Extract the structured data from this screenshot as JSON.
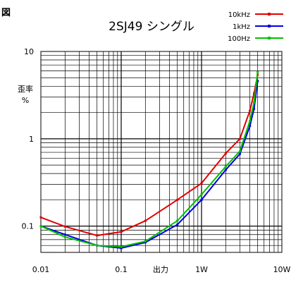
{
  "figure_label": "図",
  "chart_data": {
    "type": "line",
    "title": "2SJ49 シングル",
    "xlabel": "出力",
    "ylabel": "歪率\n%",
    "x_scale": "log",
    "y_scale": "log",
    "xlim": [
      0.01,
      10
    ],
    "ylim": [
      0.05,
      10
    ],
    "x_tick_labels": [
      {
        "value": 0.01,
        "label": "0.01"
      },
      {
        "value": 0.1,
        "label": "0.1"
      },
      {
        "value": 1,
        "label": "1W"
      },
      {
        "value": 10,
        "label": "10W"
      }
    ],
    "y_tick_labels": [
      {
        "value": 0.1,
        "label": "0.1"
      },
      {
        "value": 1,
        "label": "1"
      },
      {
        "value": 10,
        "label": "10"
      }
    ],
    "grid": true,
    "legend_position": "top-right",
    "series": [
      {
        "name": "10kHz",
        "color": "#e00000",
        "points": [
          [
            0.01,
            0.126
          ],
          [
            0.02,
            0.099
          ],
          [
            0.05,
            0.078
          ],
          [
            0.1,
            0.086
          ],
          [
            0.2,
            0.115
          ],
          [
            0.5,
            0.2
          ],
          [
            1,
            0.31
          ],
          [
            2,
            0.68
          ],
          [
            3,
            1.0
          ],
          [
            4,
            2.1
          ],
          [
            4.5,
            3.3
          ],
          [
            5,
            5.4
          ]
        ]
      },
      {
        "name": "1kHz",
        "color": "#0000e0",
        "points": [
          [
            0.01,
            0.1
          ],
          [
            0.02,
            0.08
          ],
          [
            0.05,
            0.06
          ],
          [
            0.1,
            0.056
          ],
          [
            0.2,
            0.065
          ],
          [
            0.5,
            0.104
          ],
          [
            1,
            0.2
          ],
          [
            2,
            0.44
          ],
          [
            3,
            0.67
          ],
          [
            4,
            1.4
          ],
          [
            4.5,
            2.2
          ],
          [
            5,
            4.6
          ]
        ]
      },
      {
        "name": "100Hz",
        "color": "#00c000",
        "points": [
          [
            0.01,
            0.1
          ],
          [
            0.02,
            0.075
          ],
          [
            0.05,
            0.06
          ],
          [
            0.1,
            0.058
          ],
          [
            0.2,
            0.067
          ],
          [
            0.5,
            0.115
          ],
          [
            1,
            0.23
          ],
          [
            2,
            0.48
          ],
          [
            3,
            0.72
          ],
          [
            4,
            1.6
          ],
          [
            4.5,
            2.6
          ],
          [
            5,
            5.8
          ]
        ]
      }
    ]
  }
}
